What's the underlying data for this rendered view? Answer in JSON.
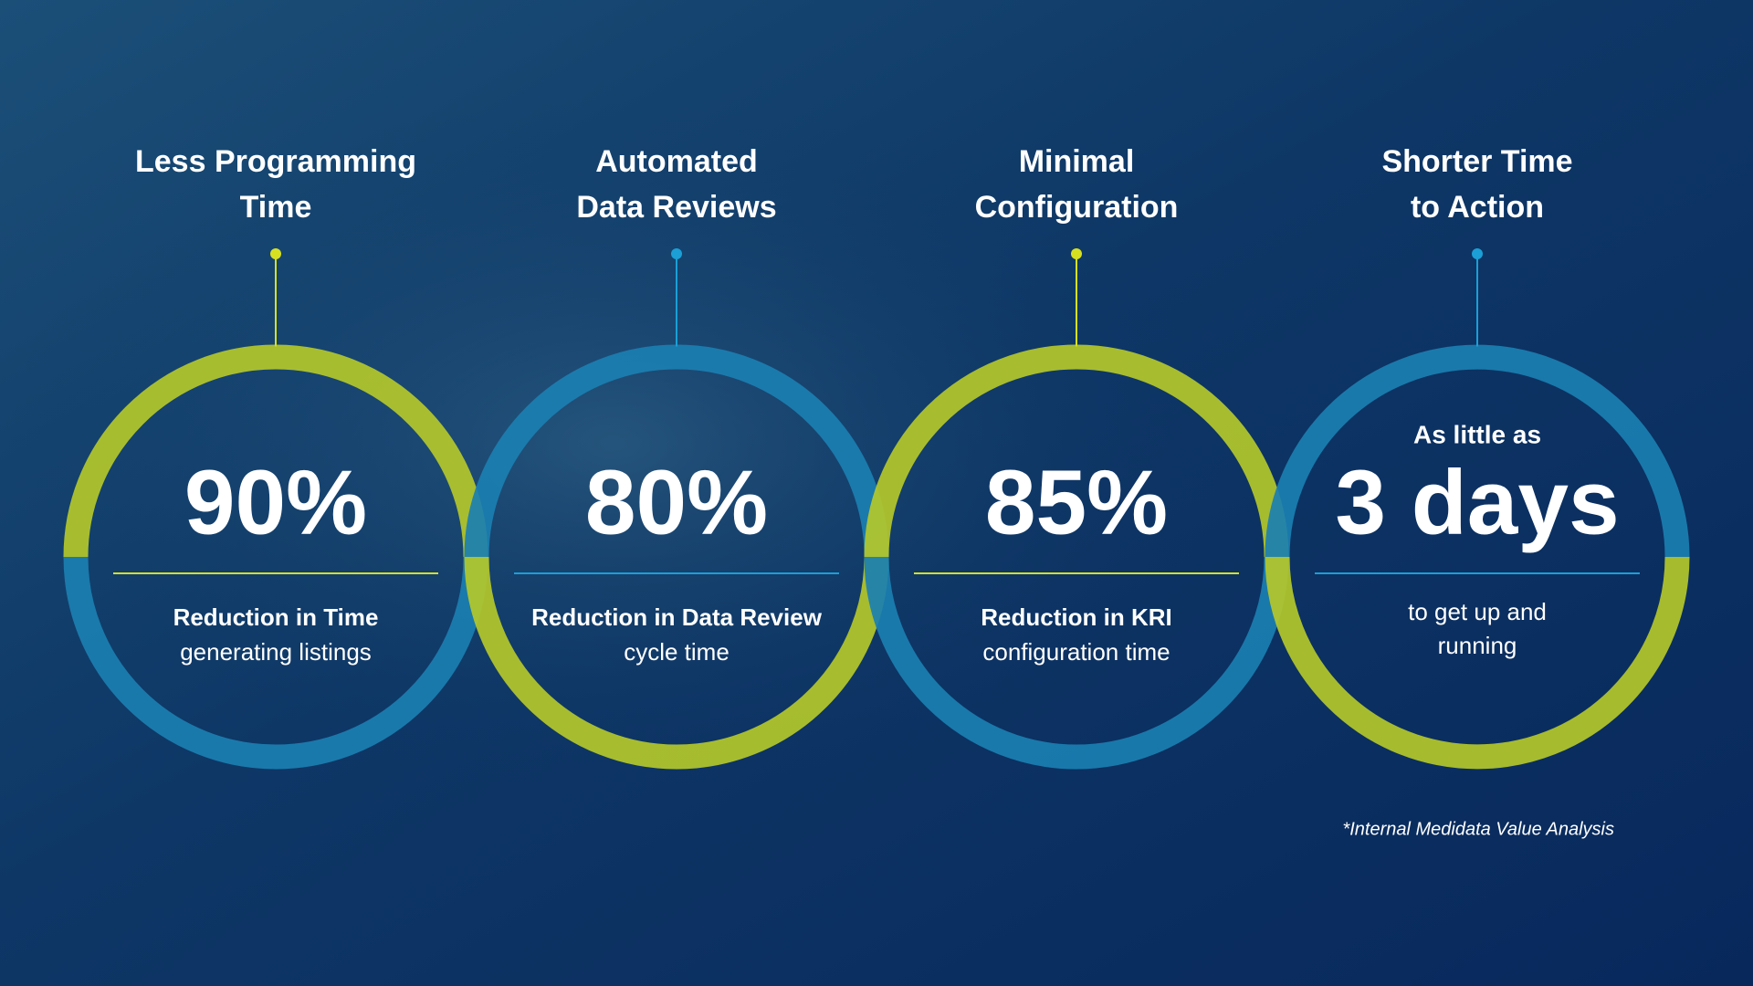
{
  "items": [
    {
      "title": [
        "Less Programming",
        "Time"
      ],
      "value": "90%",
      "caption_bold": "Reduction in Time",
      "caption": [
        "generating listings"
      ]
    },
    {
      "title": [
        "Automated",
        "Data Reviews"
      ],
      "value": "80%",
      "caption_bold": "Reduction in Data Review",
      "caption": [
        "cycle time"
      ]
    },
    {
      "title": [
        "Minimal",
        "Configuration"
      ],
      "value": "85%",
      "caption_bold": "Reduction in KRI",
      "caption": [
        "configuration time"
      ]
    },
    {
      "title": [
        "Shorter Time",
        "to Action"
      ],
      "prefix": "As little as",
      "value": "3 days",
      "caption": [
        "to get up and",
        "running"
      ]
    }
  ],
  "footnote": "*Internal Medidata Value Analysis"
}
